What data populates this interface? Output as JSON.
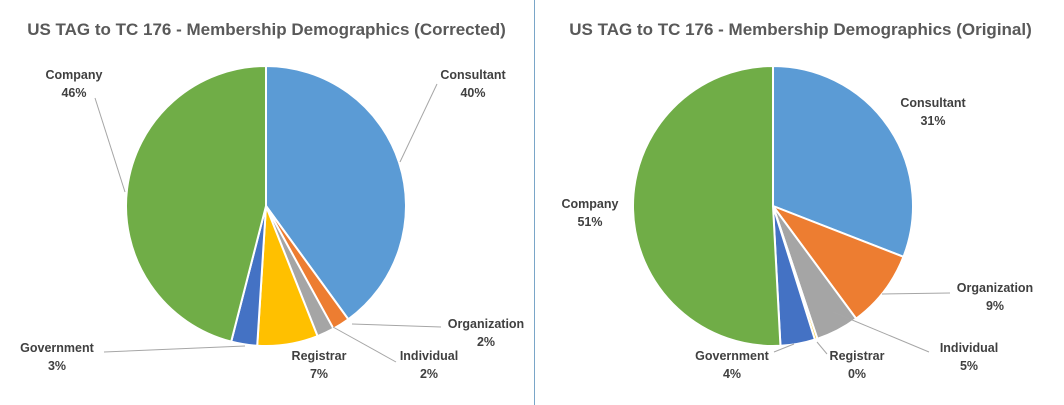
{
  "chart_data": [
    {
      "type": "pie",
      "title": "US TAG to TC 176 - Membership Demographics (Corrected)",
      "categories": [
        "Consultant",
        "Organization",
        "Individual",
        "Registrar",
        "Government",
        "Company"
      ],
      "values": [
        40,
        2,
        2,
        7,
        3,
        46
      ],
      "labels": [
        "40%",
        "2%",
        "2%",
        "7%",
        "3%",
        "46%"
      ],
      "colors": [
        "#5b9bd5",
        "#ed7d31",
        "#a5a5a5",
        "#ffc000",
        "#4472c4",
        "#70ad47"
      ]
    },
    {
      "type": "pie",
      "title": "US TAG to TC 176 - Membership Demographics (Original)",
      "categories": [
        "Consultant",
        "Organization",
        "Individual",
        "Registrar",
        "Government",
        "Company"
      ],
      "values": [
        31,
        9,
        5,
        0.3,
        4,
        51
      ],
      "labels": [
        "31%",
        "9%",
        "5%",
        "0%",
        "4%",
        "51%"
      ],
      "colors": [
        "#5b9bd5",
        "#ed7d31",
        "#a5a5a5",
        "#ffc000",
        "#4472c4",
        "#70ad47"
      ]
    }
  ]
}
